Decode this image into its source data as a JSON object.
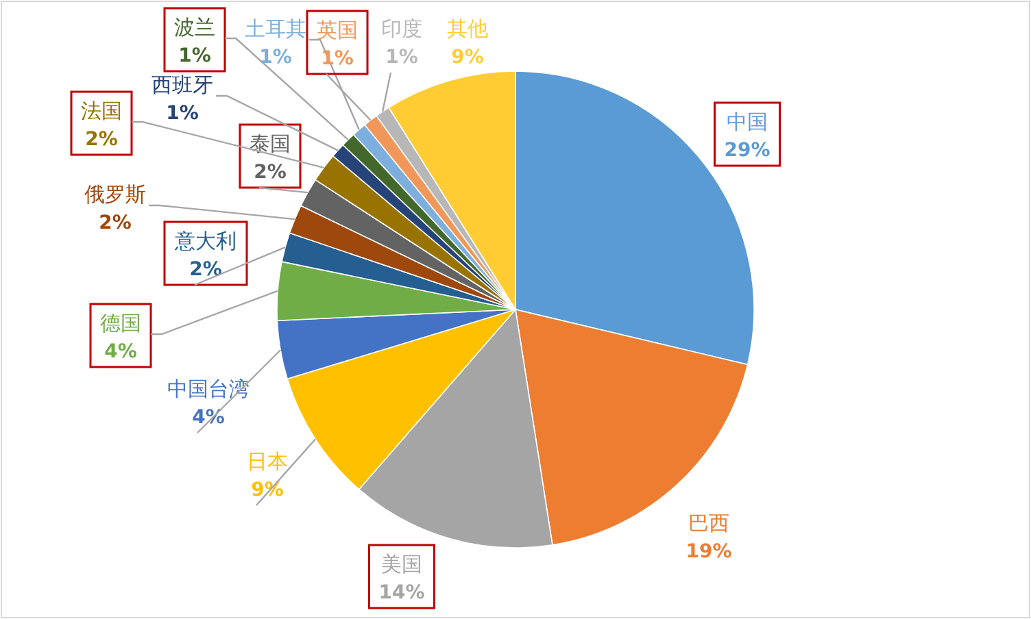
{
  "chart_data": {
    "type": "pie",
    "categories": [
      "中国",
      "巴西",
      "美国",
      "日本",
      "中国台湾",
      "德国",
      "意大利",
      "俄罗斯",
      "泰国",
      "法国",
      "西班牙",
      "波兰",
      "土耳其",
      "英国",
      "印度",
      "其他"
    ],
    "values": [
      29,
      19,
      14,
      9,
      4,
      4,
      2,
      2,
      2,
      2,
      1,
      1,
      1,
      1,
      1,
      9
    ],
    "value_labels": [
      "29%",
      "19%",
      "14%",
      "9%",
      "4%",
      "4%",
      "2%",
      "2%",
      "2%",
      "2%",
      "1%",
      "1%",
      "1%",
      "1%",
      "1%",
      "9%"
    ],
    "colors": [
      "#5b9bd5",
      "#ed7d31",
      "#a5a5a5",
      "#ffc000",
      "#4472c4",
      "#70ad47",
      "#255e91",
      "#9e480e",
      "#636363",
      "#997300",
      "#264478",
      "#43682b",
      "#7cafdd",
      "#f1975a",
      "#b7b7b7",
      "#ffcd33"
    ]
  }
}
